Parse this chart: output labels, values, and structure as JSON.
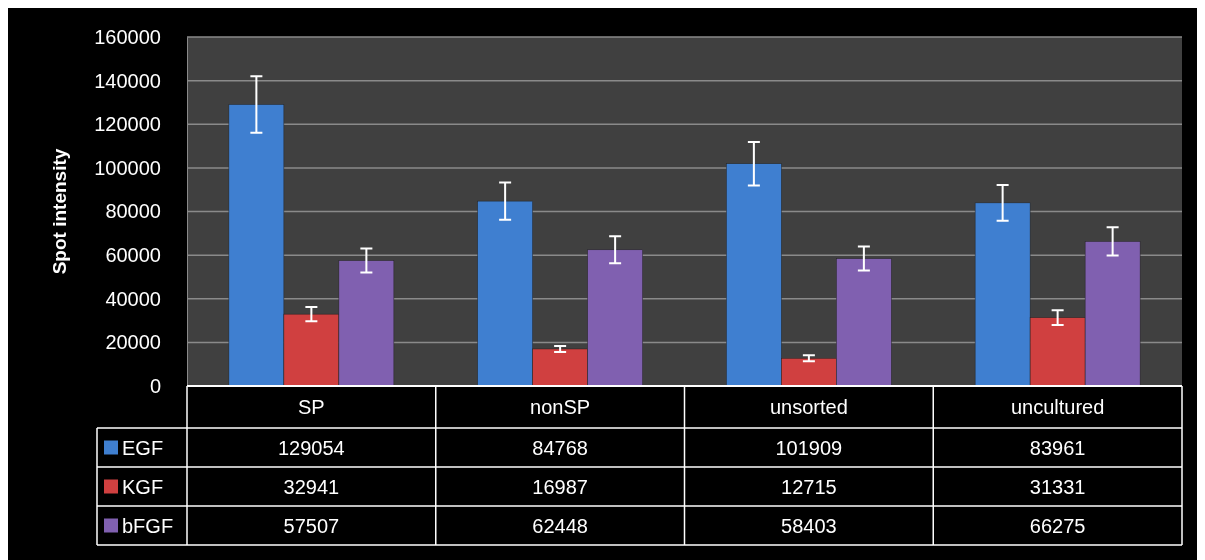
{
  "chart_data": {
    "type": "bar",
    "ylabel": "Spot intensity",
    "categories": [
      "SP",
      "nonSP",
      "unsorted",
      "uncultured"
    ],
    "series": [
      {
        "name": "EGF",
        "color": "#3f7fd0",
        "values": [
          129054,
          84768,
          101909,
          83961
        ],
        "errors": [
          13000,
          8500,
          10000,
          8200
        ]
      },
      {
        "name": "KGF",
        "color": "#d04040",
        "values": [
          32941,
          16987,
          12715,
          31331
        ],
        "errors": [
          3300,
          1400,
          1400,
          3400
        ]
      },
      {
        "name": "bFGF",
        "color": "#8060b0",
        "values": [
          57507,
          62448,
          58403,
          66275
        ],
        "errors": [
          5500,
          6200,
          5500,
          6500
        ]
      }
    ],
    "ylim": [
      0,
      160000
    ],
    "yticks": [
      0,
      20000,
      40000,
      60000,
      80000,
      100000,
      120000,
      140000,
      160000
    ],
    "grid": "y",
    "data_labels": true,
    "legend": "bottom"
  }
}
